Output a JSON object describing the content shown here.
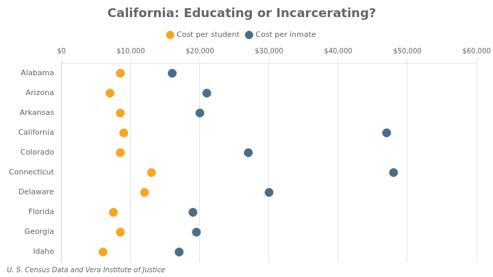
{
  "chart_data": {
    "type": "dot",
    "title": "California: Educating or Incarcerating?",
    "subtitle": "U. S. Census Data and Vera Institute of Justice",
    "categories": [
      "Alabama",
      "Arizona",
      "Arkansas",
      "California",
      "Colorado",
      "Connecticut",
      "Delaware",
      "Florida",
      "Georgia",
      "Idaho"
    ],
    "series": [
      {
        "name": "Cost per student",
        "color": "#f5a623",
        "values": [
          8500,
          7000,
          8500,
          9000,
          8500,
          13000,
          12000,
          7500,
          8500,
          6000
        ]
      },
      {
        "name": "Cost per inmate",
        "color": "#4a6e8a",
        "values": [
          16000,
          21000,
          20000,
          47000,
          27000,
          48000,
          30000,
          19000,
          19500,
          17000
        ]
      }
    ],
    "xlim": [
      0,
      60000
    ],
    "xticks": [
      {
        "value": 0,
        "label": "$0"
      },
      {
        "value": 10000,
        "label": "$10,000"
      },
      {
        "value": 20000,
        "label": "$20,000"
      },
      {
        "value": 30000,
        "label": "$30,000"
      },
      {
        "value": 40000,
        "label": "$40,000"
      },
      {
        "value": 50000,
        "label": "$50,000"
      },
      {
        "value": 60000,
        "label": "$60,000"
      }
    ],
    "grid": true,
    "legend": "top"
  }
}
